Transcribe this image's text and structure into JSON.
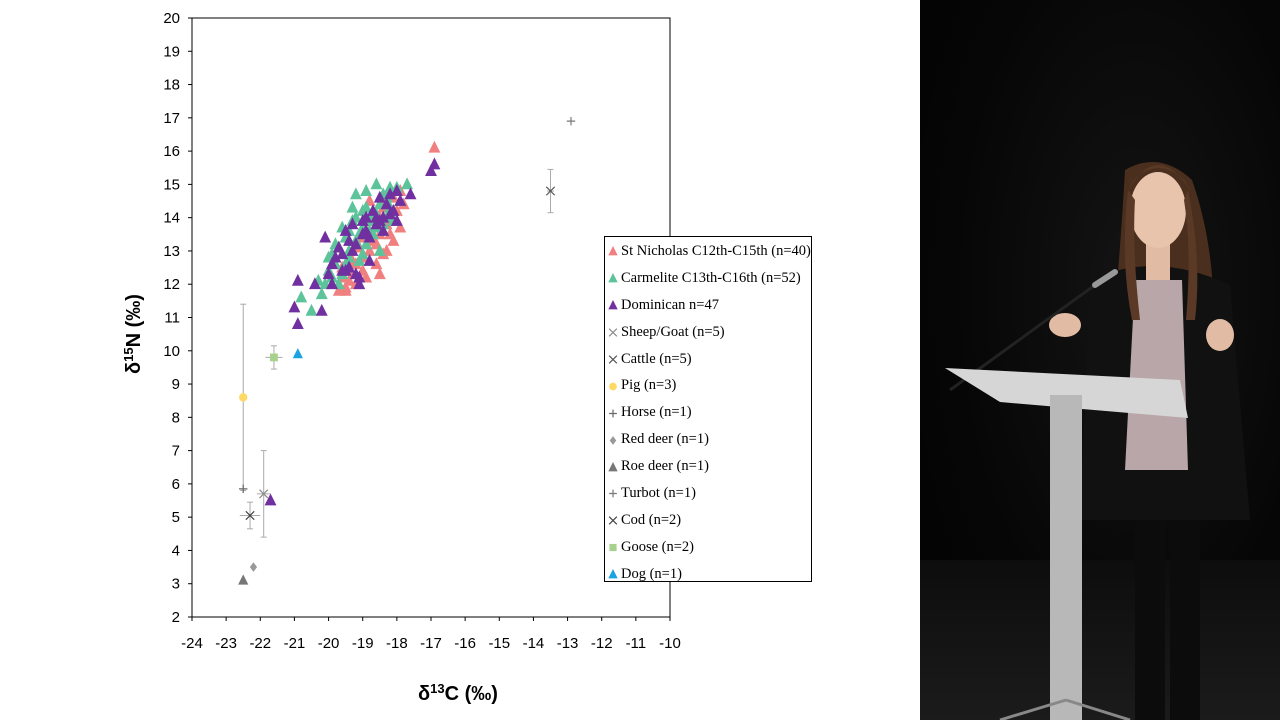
{
  "chart_data": {
    "type": "scatter",
    "xlabel": "δ13C (‰)",
    "ylabel": "δ15N (‰)",
    "xlim": [
      -24,
      -10
    ],
    "ylim": [
      2,
      20
    ],
    "xticks": [
      -24,
      -23,
      -22,
      -21,
      -20,
      -19,
      -18,
      -17,
      -16,
      -15,
      -14,
      -13,
      -12,
      -11,
      -10
    ],
    "yticks": [
      2,
      3,
      4,
      5,
      6,
      7,
      8,
      9,
      10,
      11,
      12,
      13,
      14,
      15,
      16,
      17,
      18,
      19,
      20
    ],
    "grid": false,
    "legend_position": "right",
    "series": [
      {
        "name": "St Nicholas C12th-C15th (n=40)",
        "marker": "triangle",
        "color": "#f08080",
        "points": [
          [
            -19.8,
            12.8
          ],
          [
            -19.6,
            12.5
          ],
          [
            -19.5,
            11.9
          ],
          [
            -19.4,
            12.1
          ],
          [
            -19.3,
            12.3
          ],
          [
            -19.2,
            12.0
          ],
          [
            -19.0,
            12.4
          ],
          [
            -19.0,
            12.8
          ],
          [
            -18.9,
            12.2
          ],
          [
            -18.8,
            13.0
          ],
          [
            -18.7,
            13.3
          ],
          [
            -18.6,
            12.6
          ],
          [
            -18.5,
            13.5
          ],
          [
            -18.5,
            14.0
          ],
          [
            -18.4,
            12.9
          ],
          [
            -18.3,
            13.8
          ],
          [
            -18.2,
            14.1
          ],
          [
            -18.1,
            14.6
          ],
          [
            -18.0,
            13.9
          ],
          [
            -17.9,
            13.7
          ],
          [
            -17.8,
            14.4
          ],
          [
            -19.7,
            11.8
          ],
          [
            -19.5,
            11.8
          ],
          [
            -19.1,
            13.1
          ],
          [
            -18.9,
            13.6
          ],
          [
            -18.6,
            13.2
          ],
          [
            -18.4,
            14.3
          ],
          [
            -18.2,
            13.5
          ],
          [
            -18.0,
            14.2
          ],
          [
            -19.3,
            12.7
          ],
          [
            -16.9,
            16.1
          ],
          [
            -18.7,
            13.9
          ],
          [
            -18.5,
            12.3
          ],
          [
            -19.0,
            13.4
          ],
          [
            -18.8,
            14.5
          ],
          [
            -18.3,
            13.0
          ],
          [
            -19.6,
            12.2
          ],
          [
            -19.2,
            12.6
          ],
          [
            -18.1,
            13.3
          ],
          [
            -17.9,
            14.8
          ]
        ]
      },
      {
        "name": "Carmelite C13th-C16th (n=52)",
        "marker": "triangle",
        "color": "#5cc39a",
        "points": [
          [
            -20.8,
            11.6
          ],
          [
            -20.5,
            11.2
          ],
          [
            -20.2,
            11.7
          ],
          [
            -20.0,
            12.4
          ],
          [
            -19.9,
            12.9
          ],
          [
            -19.8,
            13.2
          ],
          [
            -19.7,
            12.0
          ],
          [
            -19.6,
            13.7
          ],
          [
            -19.5,
            12.6
          ],
          [
            -19.4,
            13.0
          ],
          [
            -19.3,
            13.9
          ],
          [
            -19.2,
            14.7
          ],
          [
            -19.1,
            13.5
          ],
          [
            -19.0,
            14.2
          ],
          [
            -18.9,
            14.8
          ],
          [
            -18.8,
            13.6
          ],
          [
            -18.7,
            14.0
          ],
          [
            -18.6,
            15.0
          ],
          [
            -18.5,
            14.4
          ],
          [
            -18.4,
            13.8
          ],
          [
            -18.3,
            14.6
          ],
          [
            -18.2,
            14.9
          ],
          [
            -18.1,
            13.9
          ],
          [
            -17.9,
            14.5
          ],
          [
            -17.7,
            15.0
          ],
          [
            -19.9,
            12.2
          ],
          [
            -19.6,
            12.3
          ],
          [
            -19.4,
            12.8
          ],
          [
            -19.2,
            13.3
          ],
          [
            -19.0,
            12.9
          ],
          [
            -18.9,
            13.2
          ],
          [
            -18.7,
            13.5
          ],
          [
            -18.5,
            13.0
          ],
          [
            -18.3,
            14.0
          ],
          [
            -20.1,
            12.0
          ],
          [
            -19.8,
            12.6
          ],
          [
            -19.5,
            13.4
          ],
          [
            -19.3,
            14.3
          ],
          [
            -19.1,
            12.7
          ],
          [
            -18.9,
            14.3
          ],
          [
            -18.6,
            14.1
          ],
          [
            -18.4,
            14.7
          ],
          [
            -18.2,
            14.3
          ],
          [
            -20.0,
            12.8
          ],
          [
            -19.7,
            13.1
          ],
          [
            -19.4,
            13.6
          ],
          [
            -19.2,
            14.0
          ],
          [
            -18.8,
            13.9
          ],
          [
            -18.6,
            13.7
          ],
          [
            -18.0,
            14.9
          ],
          [
            -20.3,
            12.1
          ],
          [
            -19.0,
            13.7
          ]
        ]
      },
      {
        "name": "Dominican n=47",
        "marker": "triangle",
        "color": "#7030a0",
        "points": [
          [
            -20.9,
            12.1
          ],
          [
            -20.9,
            10.8
          ],
          [
            -21.0,
            11.3
          ],
          [
            -20.4,
            12.0
          ],
          [
            -20.2,
            11.2
          ],
          [
            -20.1,
            13.4
          ],
          [
            -20.0,
            12.3
          ],
          [
            -19.9,
            12.0
          ],
          [
            -19.8,
            12.8
          ],
          [
            -19.7,
            13.1
          ],
          [
            -19.6,
            12.4
          ],
          [
            -19.5,
            13.6
          ],
          [
            -19.4,
            12.5
          ],
          [
            -19.3,
            13.8
          ],
          [
            -19.2,
            13.2
          ],
          [
            -19.1,
            12.0
          ],
          [
            -19.0,
            13.5
          ],
          [
            -18.9,
            14.0
          ],
          [
            -18.8,
            12.7
          ],
          [
            -18.7,
            14.2
          ],
          [
            -18.6,
            13.8
          ],
          [
            -18.5,
            14.6
          ],
          [
            -18.4,
            13.6
          ],
          [
            -18.3,
            14.4
          ],
          [
            -18.2,
            14.7
          ],
          [
            -18.1,
            14.2
          ],
          [
            -18.0,
            14.8
          ],
          [
            -17.9,
            14.5
          ],
          [
            -17.6,
            14.7
          ],
          [
            -17.0,
            15.4
          ],
          [
            -16.9,
            15.6
          ],
          [
            -19.9,
            12.6
          ],
          [
            -19.6,
            12.9
          ],
          [
            -19.4,
            13.3
          ],
          [
            -19.2,
            12.3
          ],
          [
            -19.0,
            13.9
          ],
          [
            -18.8,
            13.4
          ],
          [
            -18.6,
            14.0
          ],
          [
            -18.4,
            14.0
          ],
          [
            -18.2,
            14.1
          ],
          [
            -18.0,
            13.9
          ],
          [
            -19.5,
            12.4
          ],
          [
            -19.3,
            13.0
          ],
          [
            -18.9,
            13.6
          ],
          [
            -18.5,
            13.9
          ],
          [
            -21.7,
            5.5
          ],
          [
            -19.1,
            12.2
          ]
        ]
      },
      {
        "name": "Sheep/Goat (n=5)",
        "marker": "x",
        "color": "#8c8c8c",
        "points": [
          [
            -21.9,
            5.7
          ]
        ],
        "x_err": 0.2,
        "y_err": 1.3
      },
      {
        "name": "Cattle (n=5)",
        "marker": "x",
        "color": "#555555",
        "points": [
          [
            -13.5,
            14.8
          ]
        ],
        "x_err": 0.1,
        "y_err": 0.65
      },
      {
        "name": "Pig (n=3)",
        "marker": "circle",
        "color": "#ffd966",
        "points": [
          [
            -22.5,
            8.6
          ]
        ],
        "x_err": 0.05,
        "y_err": 2.8
      },
      {
        "name": "Horse (n=1)",
        "marker": "plus",
        "color": "#666666",
        "points": [
          [
            -22.5,
            5.85
          ]
        ]
      },
      {
        "name": "Red deer (n=1)",
        "marker": "diamond",
        "color": "#999999",
        "points": [
          [
            -22.2,
            3.5
          ]
        ]
      },
      {
        "name": "Roe deer (n=1)",
        "marker": "triangle",
        "color": "#777777",
        "points": [
          [
            -22.5,
            3.1
          ]
        ]
      },
      {
        "name": "Turbot (n=1)",
        "marker": "plus",
        "color": "#777777",
        "points": [
          [
            -12.9,
            16.9
          ]
        ]
      },
      {
        "name": "Cod (n=2)",
        "marker": "x",
        "color": "#444444",
        "points": [
          [
            -22.3,
            5.05
          ]
        ],
        "x_err": 0.3,
        "y_err": 0.4
      },
      {
        "name": "Goose (n=2)",
        "marker": "square",
        "color": "#a9d18e",
        "points": [
          [
            -21.6,
            9.8
          ]
        ],
        "x_err": 0.25,
        "y_err": 0.35
      },
      {
        "name": "Dog (n=1)",
        "marker": "triangle",
        "color": "#1aa3e0",
        "points": [
          [
            -20.9,
            9.9
          ]
        ]
      }
    ]
  },
  "video": {
    "colors": {
      "background": "#050505",
      "podium": "#d6d6d6",
      "jacket": "#111111",
      "top": "#c8b6b6",
      "hair": "#5a3a26",
      "skin": "#e8c4ad"
    }
  }
}
